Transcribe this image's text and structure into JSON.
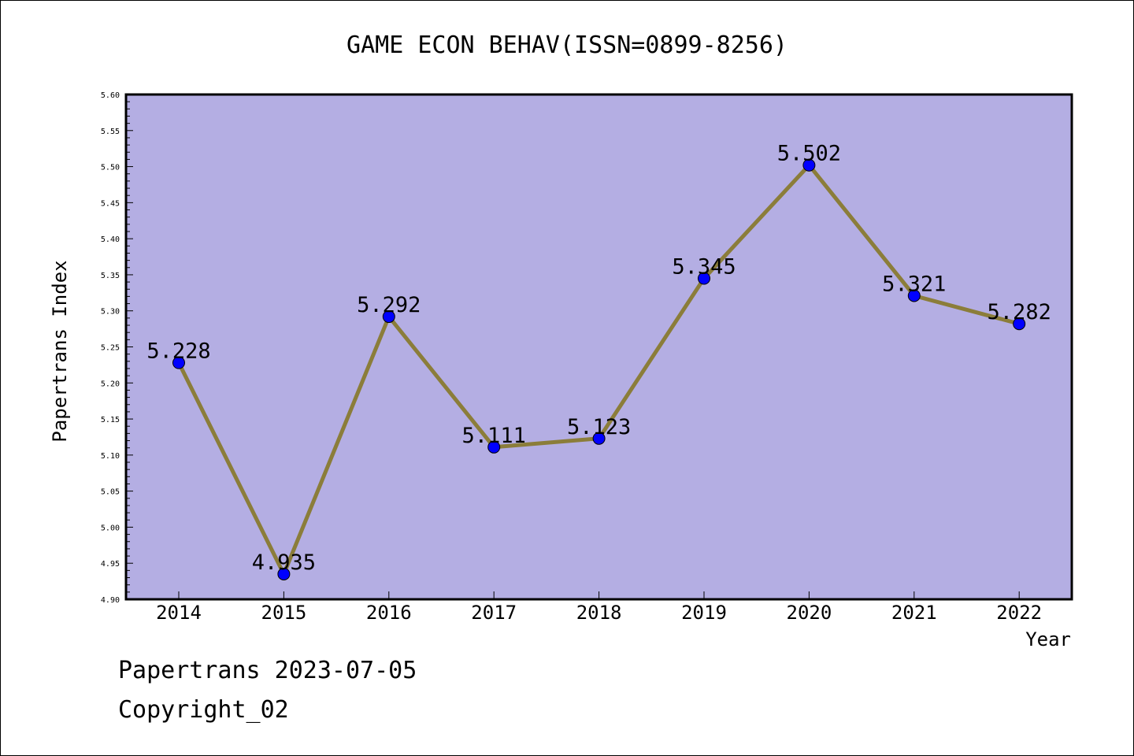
{
  "chart_data": {
    "type": "line",
    "title": "GAME ECON BEHAV(ISSN=0899-8256)",
    "xlabel": "Year",
    "ylabel": "Papertrans Index",
    "categories": [
      "2014",
      "2015",
      "2016",
      "2017",
      "2018",
      "2019",
      "2020",
      "2021",
      "2022"
    ],
    "values": [
      5.228,
      4.935,
      5.292,
      5.111,
      5.123,
      5.345,
      5.502,
      5.321,
      5.282
    ],
    "data_labels": [
      "5.228",
      "4.935",
      "5.292",
      "5.111",
      "5.123",
      "5.345",
      "5.502",
      "5.321",
      "5.282"
    ],
    "ylim": [
      4.9,
      5.6
    ],
    "yticks": [
      "4.90",
      "4.95",
      "5.00",
      "5.05",
      "5.10",
      "5.15",
      "5.20",
      "5.25",
      "5.30",
      "5.35",
      "5.40",
      "5.45",
      "5.50",
      "5.55",
      "5.60"
    ],
    "grid": false,
    "legend": "none",
    "colors": {
      "plot_background": "#b4aee3",
      "line": "#8b7d3a",
      "marker": "#0000ff"
    }
  },
  "footer": {
    "date_line": "Papertrans 2023-07-05",
    "copyright_line": "Copyright_02"
  }
}
